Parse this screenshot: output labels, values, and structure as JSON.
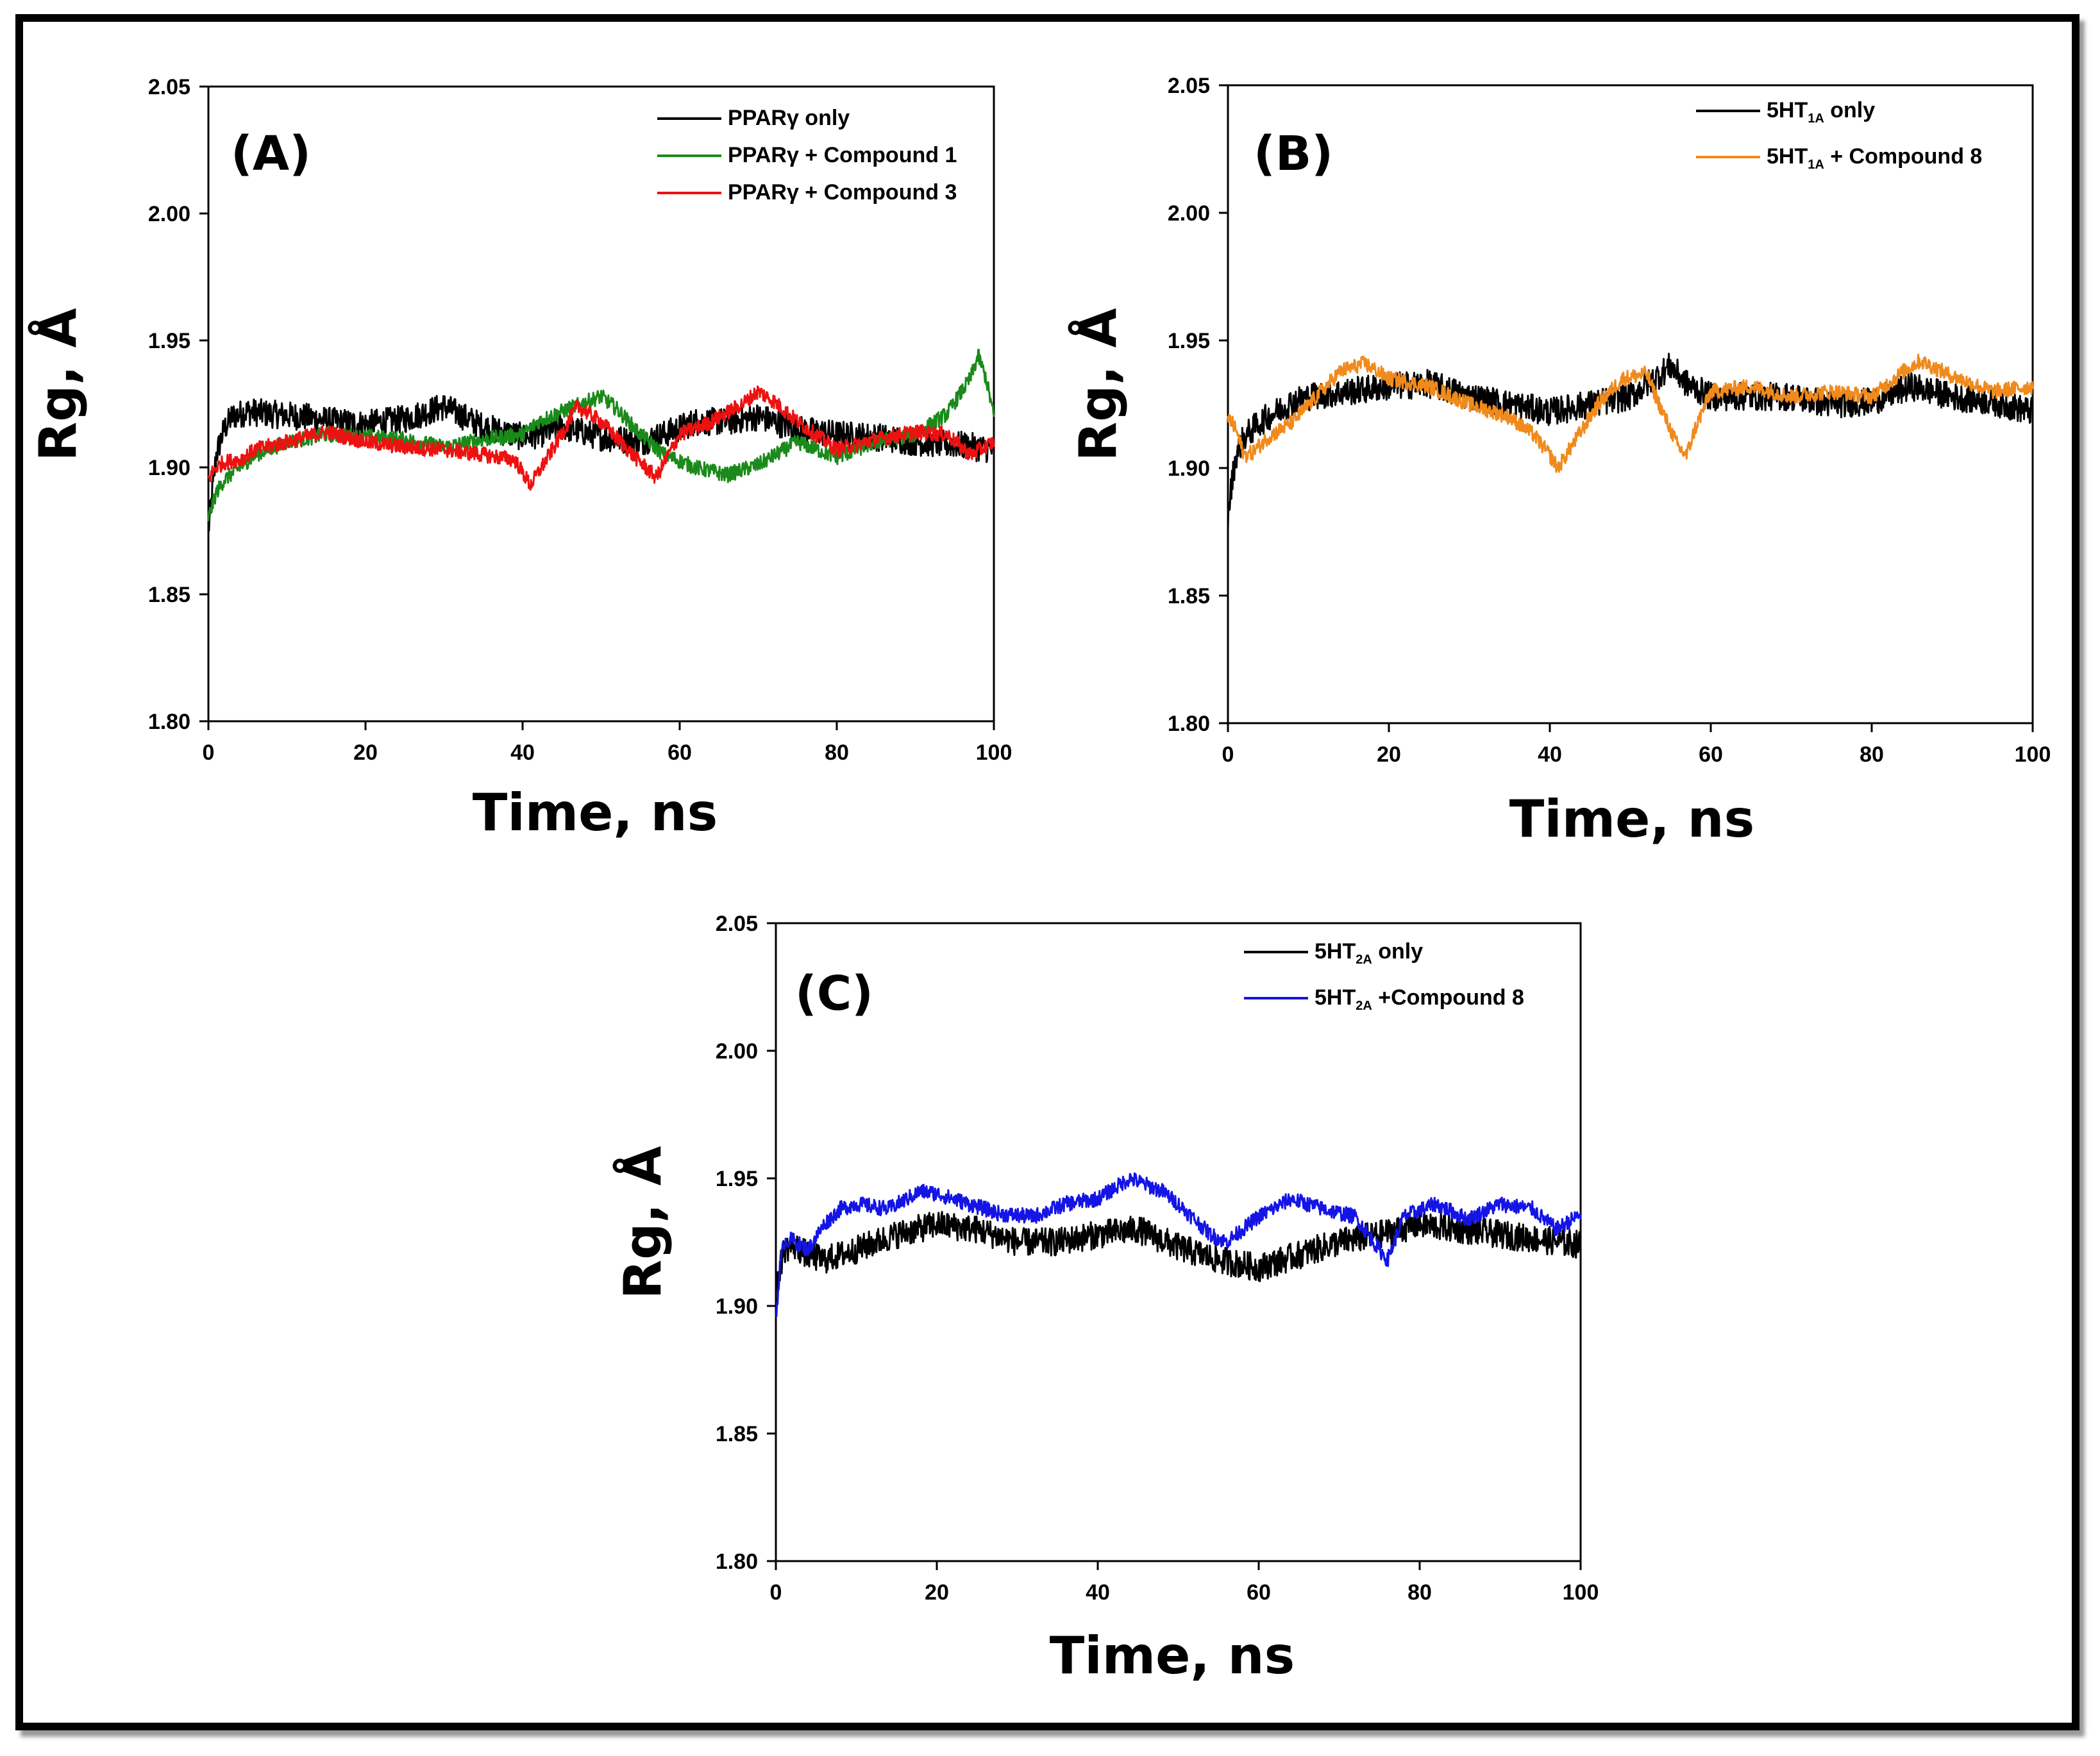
{
  "chart_data": [
    {
      "type": "line",
      "panel_label": "(A)",
      "xlabel": "Time, ns",
      "ylabel": "Rg, Å",
      "xlim": [
        0,
        100
      ],
      "ylim": [
        1.8,
        2.05
      ],
      "xticks": [
        "0",
        "20",
        "40",
        "60",
        "80",
        "100"
      ],
      "yticks": [
        "1.80",
        "1.85",
        "1.90",
        "1.95",
        "2.00",
        "2.05"
      ],
      "legend_position": "top-right",
      "series": [
        {
          "name": "PPARγ only",
          "label_main": "PPARγ only",
          "label_sub": "",
          "label_rest": "",
          "color": "#000000",
          "x": [
            0,
            0.5,
            1,
            2,
            3,
            5,
            8,
            12,
            16,
            20,
            25,
            30,
            35,
            40,
            42,
            45,
            50,
            55,
            58,
            62,
            66,
            70,
            75,
            80,
            85,
            90,
            95,
            100
          ],
          "y": [
            1.875,
            1.89,
            1.905,
            1.915,
            1.92,
            1.922,
            1.921,
            1.92,
            1.918,
            1.917,
            1.919,
            1.924,
            1.916,
            1.912,
            1.913,
            1.916,
            1.912,
            1.91,
            1.913,
            1.918,
            1.918,
            1.92,
            1.915,
            1.913,
            1.912,
            1.91,
            1.909,
            1.907
          ]
        },
        {
          "name": "PPARγ + Compound 1",
          "label_main": "PPARγ + Compound 1",
          "label_sub": "",
          "label_rest": "",
          "color": "#1a8a1a",
          "x": [
            0,
            0.5,
            1,
            2,
            4,
            6,
            10,
            15,
            20,
            25,
            30,
            35,
            40,
            42,
            45,
            50,
            52,
            55,
            58,
            62,
            66,
            70,
            75,
            80,
            85,
            90,
            94,
            97,
            98,
            99,
            100
          ],
          "y": [
            1.88,
            1.885,
            1.89,
            1.895,
            1.9,
            1.905,
            1.91,
            1.913,
            1.912,
            1.911,
            1.908,
            1.911,
            1.913,
            1.918,
            1.922,
            1.928,
            1.923,
            1.913,
            1.905,
            1.9,
            1.897,
            1.901,
            1.91,
            1.904,
            1.91,
            1.913,
            1.921,
            1.935,
            1.944,
            1.935,
            1.92
          ]
        },
        {
          "name": "PPARγ + Compound 3",
          "label_main": "PPARγ + Compound 3",
          "label_sub": "",
          "label_rest": "",
          "color": "#ee1111",
          "x": [
            0,
            0.5,
            1,
            2,
            4,
            6,
            10,
            15,
            20,
            25,
            30,
            35,
            39,
            41,
            42,
            44,
            47,
            50,
            54,
            57,
            60,
            64,
            68,
            70,
            72,
            75,
            80,
            85,
            90,
            94,
            97,
            100
          ],
          "y": [
            1.895,
            1.898,
            1.9,
            1.902,
            1.903,
            1.907,
            1.91,
            1.914,
            1.91,
            1.908,
            1.907,
            1.905,
            1.903,
            1.893,
            1.898,
            1.908,
            1.924,
            1.918,
            1.905,
            1.896,
            1.913,
            1.918,
            1.925,
            1.93,
            1.926,
            1.918,
            1.907,
            1.911,
            1.914,
            1.913,
            1.905,
            1.91
          ]
        }
      ]
    },
    {
      "type": "line",
      "panel_label": "(B)",
      "xlabel": "Time, ns",
      "ylabel": "Rg, Å",
      "xlim": [
        0,
        100
      ],
      "ylim": [
        1.8,
        2.05
      ],
      "xticks": [
        "0",
        "20",
        "40",
        "60",
        "80",
        "100"
      ],
      "yticks": [
        "1.80",
        "1.85",
        "1.90",
        "1.95",
        "2.00",
        "2.05"
      ],
      "legend_position": "top-right",
      "series": [
        {
          "name": "5HT1A only",
          "label_main": "5HT",
          "label_sub": "1A",
          "label_rest": " only",
          "color": "#000000",
          "x": [
            0,
            0.5,
            1,
            2,
            4,
            6,
            8,
            10,
            15,
            20,
            25,
            30,
            35,
            40,
            45,
            50,
            53,
            55,
            57,
            60,
            65,
            70,
            75,
            80,
            85,
            90,
            95,
            100
          ],
          "y": [
            1.88,
            1.895,
            1.905,
            1.912,
            1.918,
            1.922,
            1.926,
            1.928,
            1.93,
            1.932,
            1.933,
            1.928,
            1.925,
            1.922,
            1.925,
            1.928,
            1.935,
            1.94,
            1.933,
            1.928,
            1.928,
            1.928,
            1.925,
            1.926,
            1.932,
            1.928,
            1.926,
            1.922
          ]
        },
        {
          "name": "5HT1A + Compound 8",
          "label_main": "5HT",
          "label_sub": "1A",
          "label_rest": "  + Compound 8",
          "color": "#f08a1c",
          "x": [
            0,
            1,
            2,
            3,
            5,
            8,
            11,
            14,
            17,
            20,
            25,
            30,
            35,
            38,
            40,
            41,
            43,
            46,
            49,
            52,
            54,
            56,
            57,
            58,
            60,
            65,
            70,
            75,
            80,
            84,
            86,
            90,
            95,
            100
          ],
          "y": [
            1.92,
            1.915,
            1.905,
            1.906,
            1.912,
            1.918,
            1.928,
            1.938,
            1.941,
            1.935,
            1.932,
            1.925,
            1.92,
            1.913,
            1.905,
            1.9,
            1.91,
            1.925,
            1.935,
            1.937,
            1.922,
            1.908,
            1.905,
            1.915,
            1.93,
            1.932,
            1.928,
            1.93,
            1.928,
            1.938,
            1.942,
            1.936,
            1.93,
            1.932
          ]
        }
      ]
    },
    {
      "type": "line",
      "panel_label": "(C)",
      "xlabel": "Time, ns",
      "ylabel": "Rg, Å",
      "xlim": [
        0,
        100
      ],
      "ylim": [
        1.8,
        2.05
      ],
      "xticks": [
        "0",
        "20",
        "40",
        "60",
        "80",
        "100"
      ],
      "yticks": [
        "1.80",
        "1.85",
        "1.90",
        "1.95",
        "2.00",
        "2.05"
      ],
      "legend_position": "top-right",
      "series": [
        {
          "name": "5HT2A only",
          "label_main": "5HT",
          "label_sub": "2A",
          "label_rest": " only",
          "color": "#000000",
          "x": [
            0,
            0.5,
            1,
            2,
            4,
            6,
            8,
            10,
            15,
            20,
            25,
            30,
            35,
            40,
            45,
            50,
            55,
            60,
            65,
            70,
            75,
            80,
            85,
            90,
            95,
            100
          ],
          "y": [
            1.905,
            1.915,
            1.922,
            1.924,
            1.92,
            1.918,
            1.92,
            1.922,
            1.928,
            1.932,
            1.93,
            1.925,
            1.925,
            1.928,
            1.93,
            1.923,
            1.918,
            1.915,
            1.92,
            1.925,
            1.928,
            1.932,
            1.93,
            1.928,
            1.926,
            1.924
          ]
        },
        {
          "name": "5HT2A + Compound 8",
          "label_main": "5HT",
          "label_sub": "2A",
          "label_rest": " +Compound 8",
          "color": "#1414e6",
          "x": [
            0,
            0.5,
            1,
            2,
            4,
            6,
            8,
            10,
            14,
            18,
            20,
            24,
            28,
            32,
            36,
            40,
            44,
            48,
            50,
            54,
            56,
            60,
            64,
            68,
            72,
            75,
            76,
            78,
            82,
            86,
            90,
            94,
            97,
            100
          ],
          "y": [
            1.895,
            1.915,
            1.925,
            1.926,
            1.922,
            1.932,
            1.938,
            1.94,
            1.938,
            1.945,
            1.944,
            1.94,
            1.936,
            1.935,
            1.94,
            1.942,
            1.95,
            1.945,
            1.94,
            1.928,
            1.925,
            1.935,
            1.942,
            1.938,
            1.935,
            1.922,
            1.918,
            1.935,
            1.94,
            1.934,
            1.94,
            1.938,
            1.93,
            1.936
          ]
        }
      ]
    }
  ]
}
